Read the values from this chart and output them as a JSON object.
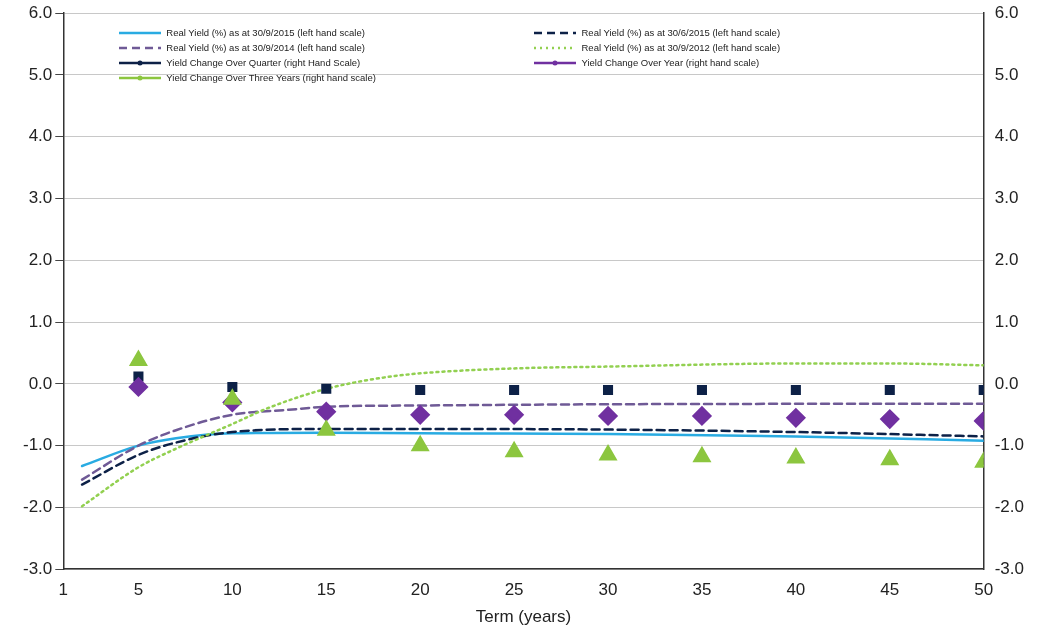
{
  "chart_data": {
    "type": "line",
    "xlabel": "Term (years)",
    "xlim": [
      1,
      50
    ],
    "xticks": [
      1,
      5,
      10,
      15,
      20,
      25,
      30,
      35,
      40,
      45,
      50
    ],
    "ylim": [
      -3,
      6
    ],
    "yticks": [
      {
        "value": -3,
        "label": "-3.0"
      },
      {
        "value": -2,
        "label": "-2.0"
      },
      {
        "value": -1,
        "label": "-1.0"
      },
      {
        "value": 0,
        "label": "0.0"
      },
      {
        "value": 1,
        "label": "1.0"
      },
      {
        "value": 2,
        "label": "2.0"
      },
      {
        "value": 3,
        "label": "3.0"
      },
      {
        "value": 4,
        "label": "4.0"
      },
      {
        "value": 5,
        "label": "5.0"
      },
      {
        "value": 6,
        "label": "6.0"
      }
    ],
    "y2lim": [
      -3,
      6
    ],
    "y2ticks": [
      {
        "value": -3,
        "label": "-3.0"
      },
      {
        "value": -2,
        "label": "-2.0"
      },
      {
        "value": -1,
        "label": "-1.0"
      },
      {
        "value": 0,
        "label": "0.0"
      },
      {
        "value": 1,
        "label": "1.0"
      },
      {
        "value": 2,
        "label": "2.0"
      },
      {
        "value": 3,
        "label": "3.0"
      },
      {
        "value": 4,
        "label": "4.0"
      },
      {
        "value": 5,
        "label": "5.0"
      },
      {
        "value": 6,
        "label": "6.0"
      }
    ],
    "grid": "y",
    "legend": "top",
    "series": [
      {
        "name": "Real Yield (%) as at 30/9/2015 (left hand scale)",
        "color": "#29abe2",
        "line_style": "solid",
        "marker": "none",
        "x": [
          2,
          5,
          7,
          10,
          15,
          20,
          30,
          40,
          50
        ],
        "values": [
          -1.33,
          -1.0,
          -0.88,
          -0.8,
          -0.79,
          -0.8,
          -0.81,
          -0.85,
          -0.92
        ]
      },
      {
        "name": "Real Yield (%) as at 30/6/2015 (left hand scale)",
        "color": "#0d2147",
        "line_style": "dashed",
        "marker": "none",
        "x": [
          2,
          5,
          7,
          10,
          15,
          20,
          30,
          40,
          50
        ],
        "values": [
          -1.63,
          -1.15,
          -0.95,
          -0.78,
          -0.73,
          -0.73,
          -0.74,
          -0.78,
          -0.85
        ]
      },
      {
        "name": "Real Yield (%) as at 30/9/2014 (left hand scale)",
        "color": "#6f5a96",
        "line_style": "dashed",
        "marker": "none",
        "x": [
          2,
          5,
          7,
          10,
          13,
          15,
          20,
          30,
          50
        ],
        "values": [
          -1.55,
          -1.0,
          -0.75,
          -0.5,
          -0.42,
          -0.37,
          -0.35,
          -0.33,
          -0.32
        ]
      },
      {
        "name": "Real Yield (%) as at 30/9/2012 (left hand scale)",
        "color": "#92d050",
        "line_style": "dotted",
        "marker": "none",
        "x": [
          2,
          5,
          7,
          10,
          12,
          15,
          18,
          20,
          25,
          30,
          40,
          45,
          50
        ],
        "values": [
          -1.98,
          -1.35,
          -1.05,
          -0.65,
          -0.38,
          -0.08,
          0.1,
          0.17,
          0.25,
          0.28,
          0.33,
          0.33,
          0.3
        ]
      },
      {
        "name": "Yield Change Over Quarter (right Hand Scale)",
        "type": "scatter",
        "axis": "y2",
        "color": "#0d2147",
        "marker": "square",
        "x": [
          5,
          10,
          15,
          20,
          25,
          30,
          35,
          40,
          45,
          50
        ],
        "values": [
          0.12,
          -0.05,
          -0.08,
          -0.1,
          -0.1,
          -0.1,
          -0.1,
          -0.1,
          -0.1,
          -0.1
        ]
      },
      {
        "name": "Yield Change Over Year (right hand scale)",
        "type": "scatter",
        "axis": "y2",
        "color": "#7030a0",
        "marker": "diamond",
        "x": [
          5,
          10,
          15,
          20,
          25,
          30,
          35,
          40,
          45,
          50
        ],
        "values": [
          -0.05,
          -0.3,
          -0.45,
          -0.5,
          -0.5,
          -0.52,
          -0.52,
          -0.55,
          -0.57,
          -0.6
        ]
      },
      {
        "name": "Yield Change Over Three Years (right hand scale)",
        "type": "scatter",
        "axis": "y2",
        "color": "#8cc63f",
        "marker": "triangle",
        "x": [
          5,
          10,
          15,
          20,
          25,
          30,
          35,
          40,
          45,
          50
        ],
        "values": [
          0.38,
          -0.25,
          -0.75,
          -1.0,
          -1.1,
          -1.15,
          -1.18,
          -1.2,
          -1.23,
          -1.27
        ]
      }
    ]
  }
}
